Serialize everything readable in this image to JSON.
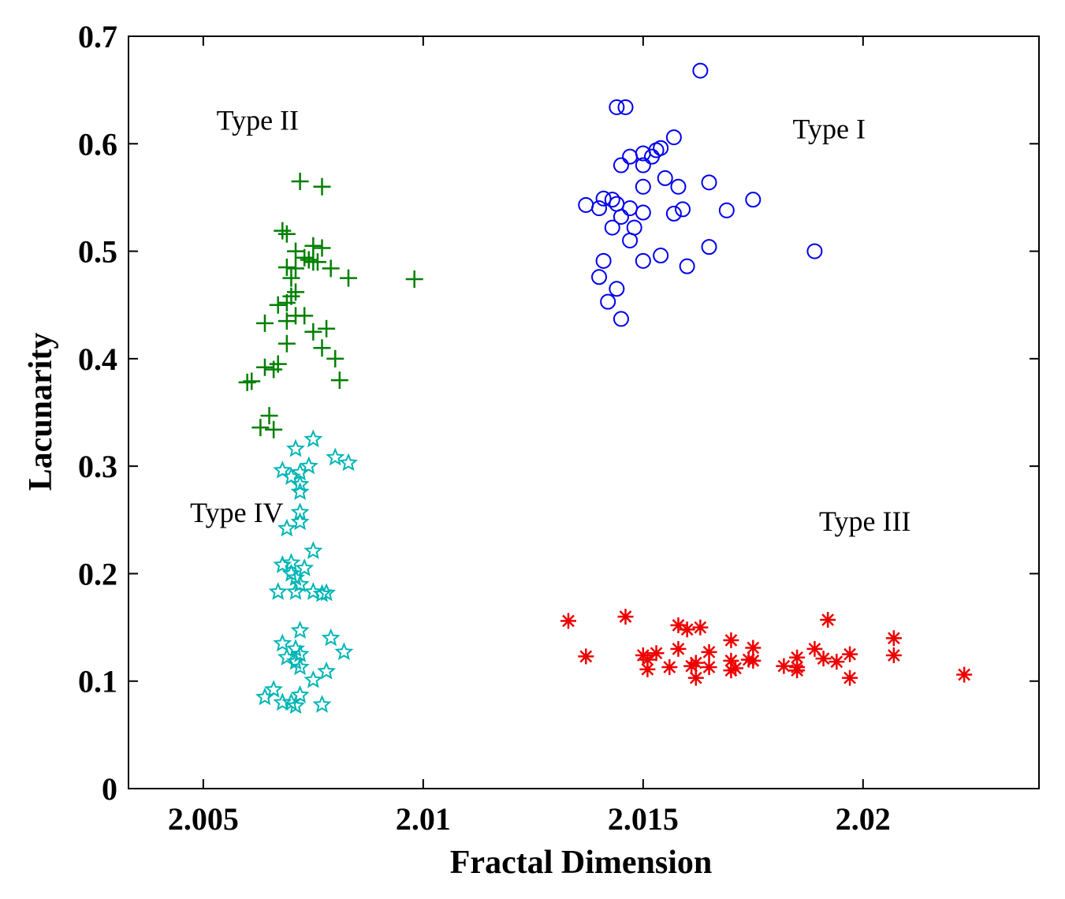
{
  "chart_data": {
    "type": "scatter",
    "title": "",
    "xlabel": "Fractal Dimension",
    "ylabel": "Lacunarity",
    "xlim": [
      2.0033,
      2.024
    ],
    "ylim": [
      0,
      0.7
    ],
    "xticks": [
      2.005,
      2.01,
      2.015,
      2.02
    ],
    "xtick_labels": [
      "2.005",
      "2.01",
      "2.015",
      "2.02"
    ],
    "yticks": [
      0,
      0.1,
      0.2,
      0.3,
      0.4,
      0.5,
      0.6,
      0.7
    ],
    "ytick_labels": [
      "0",
      "0.1",
      "0.2",
      "0.3",
      "0.4",
      "0.5",
      "0.6",
      "0.7"
    ],
    "grid": false,
    "annotations": [
      {
        "text": "Type II",
        "x": 2.0053,
        "y": 0.613
      },
      {
        "text": "Type I",
        "x": 2.0184,
        "y": 0.605
      },
      {
        "text": "Type IV",
        "x": 2.0047,
        "y": 0.248
      },
      {
        "text": "Type III",
        "x": 2.019,
        "y": 0.24
      }
    ],
    "series": [
      {
        "marker": "circle",
        "color": "#0000ee",
        "points": [
          [
            2.0163,
            0.668
          ],
          [
            2.0144,
            0.634
          ],
          [
            2.0146,
            0.634
          ],
          [
            2.0157,
            0.606
          ],
          [
            2.0154,
            0.596
          ],
          [
            2.0153,
            0.594
          ],
          [
            2.015,
            0.591
          ],
          [
            2.0147,
            0.588
          ],
          [
            2.0152,
            0.588
          ],
          [
            2.0145,
            0.58
          ],
          [
            2.015,
            0.58
          ],
          [
            2.0155,
            0.568
          ],
          [
            2.0165,
            0.564
          ],
          [
            2.015,
            0.56
          ],
          [
            2.0158,
            0.56
          ],
          [
            2.0141,
            0.549
          ],
          [
            2.0143,
            0.548
          ],
          [
            2.0175,
            0.548
          ],
          [
            2.0137,
            0.543
          ],
          [
            2.0144,
            0.544
          ],
          [
            2.014,
            0.54
          ],
          [
            2.0147,
            0.54
          ],
          [
            2.0159,
            0.539
          ],
          [
            2.0169,
            0.538
          ],
          [
            2.015,
            0.536
          ],
          [
            2.0157,
            0.535
          ],
          [
            2.0145,
            0.532
          ],
          [
            2.0143,
            0.522
          ],
          [
            2.0148,
            0.522
          ],
          [
            2.0147,
            0.51
          ],
          [
            2.0165,
            0.504
          ],
          [
            2.0189,
            0.5
          ],
          [
            2.0154,
            0.496
          ],
          [
            2.0141,
            0.491
          ],
          [
            2.015,
            0.491
          ],
          [
            2.016,
            0.486
          ],
          [
            2.014,
            0.476
          ],
          [
            2.0144,
            0.465
          ],
          [
            2.0142,
            0.453
          ],
          [
            2.0145,
            0.437
          ]
        ]
      },
      {
        "marker": "plus",
        "color": "#007f00",
        "points": [
          [
            2.0072,
            0.565
          ],
          [
            2.0077,
            0.56
          ],
          [
            2.0068,
            0.519
          ],
          [
            2.0069,
            0.516
          ],
          [
            2.0075,
            0.505
          ],
          [
            2.0077,
            0.503
          ],
          [
            2.0071,
            0.5
          ],
          [
            2.0074,
            0.492
          ],
          [
            2.0075,
            0.49
          ],
          [
            2.0073,
            0.494
          ],
          [
            2.0076,
            0.49
          ],
          [
            2.0069,
            0.485
          ],
          [
            2.0079,
            0.484
          ],
          [
            2.0071,
            0.484
          ],
          [
            2.0083,
            0.475
          ],
          [
            2.0098,
            0.474
          ],
          [
            2.007,
            0.475
          ],
          [
            2.0071,
            0.462
          ],
          [
            2.007,
            0.458
          ],
          [
            2.0069,
            0.452
          ],
          [
            2.0067,
            0.45
          ],
          [
            2.0071,
            0.44
          ],
          [
            2.0064,
            0.433
          ],
          [
            2.0069,
            0.435
          ],
          [
            2.0073,
            0.44
          ],
          [
            2.0078,
            0.428
          ],
          [
            2.0075,
            0.425
          ],
          [
            2.0069,
            0.414
          ],
          [
            2.0077,
            0.41
          ],
          [
            2.008,
            0.4
          ],
          [
            2.0067,
            0.395
          ],
          [
            2.0064,
            0.392
          ],
          [
            2.0066,
            0.39
          ],
          [
            2.0081,
            0.38
          ],
          [
            2.0061,
            0.379
          ],
          [
            2.006,
            0.378
          ],
          [
            2.0065,
            0.347
          ],
          [
            2.0063,
            0.336
          ],
          [
            2.0066,
            0.334
          ]
        ]
      },
      {
        "marker": "asterisk",
        "color": "#ee0000",
        "points": [
          [
            2.0146,
            0.16
          ],
          [
            2.0133,
            0.156
          ],
          [
            2.0192,
            0.157
          ],
          [
            2.0158,
            0.152
          ],
          [
            2.0163,
            0.15
          ],
          [
            2.016,
            0.148
          ],
          [
            2.0207,
            0.14
          ],
          [
            2.017,
            0.138
          ],
          [
            2.0175,
            0.131
          ],
          [
            2.0158,
            0.13
          ],
          [
            2.0189,
            0.13
          ],
          [
            2.0165,
            0.127
          ],
          [
            2.0153,
            0.126
          ],
          [
            2.015,
            0.124
          ],
          [
            2.0207,
            0.124
          ],
          [
            2.0197,
            0.125
          ],
          [
            2.0137,
            0.123
          ],
          [
            2.0185,
            0.122
          ],
          [
            2.0191,
            0.121
          ],
          [
            2.0174,
            0.12
          ],
          [
            2.0151,
            0.12
          ],
          [
            2.017,
            0.119
          ],
          [
            2.0175,
            0.119
          ],
          [
            2.0162,
            0.117
          ],
          [
            2.0194,
            0.118
          ],
          [
            2.0161,
            0.114
          ],
          [
            2.0165,
            0.113
          ],
          [
            2.0156,
            0.113
          ],
          [
            2.0182,
            0.114
          ],
          [
            2.0185,
            0.113
          ],
          [
            2.0171,
            0.112
          ],
          [
            2.0151,
            0.111
          ],
          [
            2.0185,
            0.11
          ],
          [
            2.017,
            0.11
          ],
          [
            2.0223,
            0.106
          ],
          [
            2.0162,
            0.103
          ],
          [
            2.0197,
            0.103
          ]
        ]
      },
      {
        "marker": "star",
        "color": "#00b5b5",
        "points": [
          [
            2.0075,
            0.325
          ],
          [
            2.0071,
            0.316
          ],
          [
            2.008,
            0.308
          ],
          [
            2.0083,
            0.303
          ],
          [
            2.0074,
            0.3
          ],
          [
            2.0068,
            0.296
          ],
          [
            2.0072,
            0.294
          ],
          [
            2.007,
            0.29
          ],
          [
            2.0072,
            0.283
          ],
          [
            2.0072,
            0.276
          ],
          [
            2.0072,
            0.257
          ],
          [
            2.0072,
            0.248
          ],
          [
            2.0069,
            0.242
          ],
          [
            2.0075,
            0.221
          ],
          [
            2.007,
            0.21
          ],
          [
            2.0068,
            0.208
          ],
          [
            2.0073,
            0.205
          ],
          [
            2.007,
            0.2
          ],
          [
            2.0071,
            0.196
          ],
          [
            2.0072,
            0.19
          ],
          [
            2.0067,
            0.183
          ],
          [
            2.0071,
            0.183
          ],
          [
            2.0075,
            0.183
          ],
          [
            2.0078,
            0.182
          ],
          [
            2.0077,
            0.181
          ],
          [
            2.0072,
            0.147
          ],
          [
            2.0079,
            0.14
          ],
          [
            2.0068,
            0.135
          ],
          [
            2.0071,
            0.13
          ],
          [
            2.0082,
            0.127
          ],
          [
            2.0072,
            0.125
          ],
          [
            2.0069,
            0.122
          ],
          [
            2.0071,
            0.118
          ],
          [
            2.0072,
            0.113
          ],
          [
            2.0078,
            0.109
          ],
          [
            2.0075,
            0.101
          ],
          [
            2.0066,
            0.092
          ],
          [
            2.0072,
            0.087
          ],
          [
            2.0064,
            0.085
          ],
          [
            2.0068,
            0.08
          ],
          [
            2.007,
            0.08
          ],
          [
            2.0077,
            0.078
          ],
          [
            2.0071,
            0.077
          ]
        ]
      }
    ]
  }
}
